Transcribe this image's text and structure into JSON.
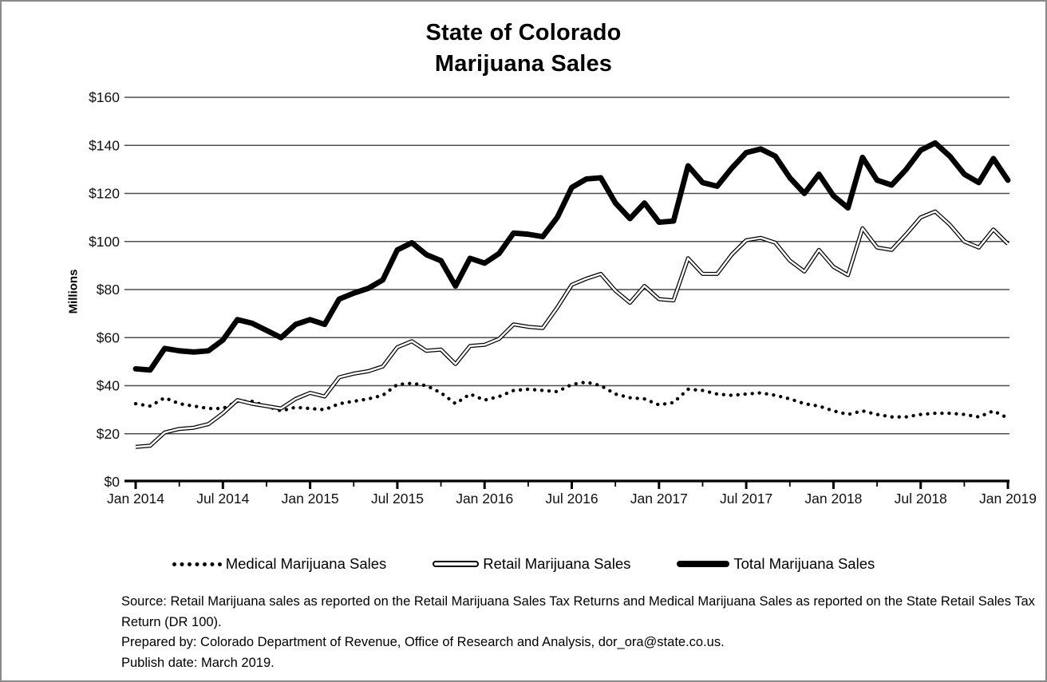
{
  "page": {
    "background_color": "#ffffff",
    "frame_border_color": "#8a8a8a"
  },
  "colors": {
    "series_line": "#000000",
    "gridline": "#4d4d4d",
    "axis": "#000000",
    "text": "#111111"
  },
  "chart_data": {
    "type": "line",
    "title": "State of Colorado Marijuana Sales",
    "title_lines": [
      "State of Colorado",
      "Marijuana Sales"
    ],
    "ylabel": "Millions",
    "xlabel": "",
    "ylim": [
      0,
      160
    ],
    "y_tick_interval": 20,
    "y_tick_labels": [
      "$160",
      "$140",
      "$120",
      "$100",
      "$80",
      "$60",
      "$40",
      "$20",
      "$0"
    ],
    "x_tick_labels": [
      "Jan 2014",
      "Jul 2014",
      "Jan 2015",
      "Jul 2015",
      "Jan 2016",
      "Jul 2016",
      "Jan 2017",
      "Jul 2017",
      "Jan 2018",
      "Jul 2018",
      "Jan 2019"
    ],
    "grid": true,
    "legend_position": "bottom",
    "x_months": [
      "2014-01",
      "2014-02",
      "2014-03",
      "2014-04",
      "2014-05",
      "2014-06",
      "2014-07",
      "2014-08",
      "2014-09",
      "2014-10",
      "2014-11",
      "2014-12",
      "2015-01",
      "2015-02",
      "2015-03",
      "2015-04",
      "2015-05",
      "2015-06",
      "2015-07",
      "2015-08",
      "2015-09",
      "2015-10",
      "2015-11",
      "2015-12",
      "2016-01",
      "2016-02",
      "2016-03",
      "2016-04",
      "2016-05",
      "2016-06",
      "2016-07",
      "2016-08",
      "2016-09",
      "2016-10",
      "2016-11",
      "2016-12",
      "2017-01",
      "2017-02",
      "2017-03",
      "2017-04",
      "2017-05",
      "2017-06",
      "2017-07",
      "2017-08",
      "2017-09",
      "2017-10",
      "2017-11",
      "2017-12",
      "2018-01",
      "2018-02",
      "2018-03",
      "2018-04",
      "2018-05",
      "2018-06",
      "2018-07",
      "2018-08",
      "2018-09",
      "2018-10",
      "2018-11",
      "2018-12",
      "2019-01"
    ],
    "units": "USD millions (estimated from chart)",
    "series": [
      {
        "name": "Medical Marijuana Sales",
        "style": "dotted",
        "values": [
          32.5,
          31.5,
          35,
          32.5,
          31.5,
          30.5,
          30.5,
          33.5,
          33.5,
          31.5,
          29.5,
          31,
          30.5,
          30,
          32.5,
          33.5,
          34.5,
          36,
          40.5,
          41,
          40,
          37,
          32.5,
          36.5,
          34,
          35.5,
          38,
          38.5,
          38,
          37.5,
          40.5,
          41.5,
          40,
          36.5,
          35,
          34.5,
          32,
          33,
          38.5,
          38,
          36.5,
          36,
          36.5,
          37,
          36,
          34.5,
          32.5,
          31.5,
          29.5,
          28,
          29.5,
          28,
          27,
          27,
          28,
          28.5,
          28.5,
          28,
          27,
          29.5,
          26.5
        ]
      },
      {
        "name": "Retail Marijuana Sales",
        "style": "double-line",
        "values": [
          14.5,
          15,
          20.5,
          22,
          22.5,
          24,
          28.5,
          34,
          32.5,
          31.5,
          30.5,
          34.5,
          37,
          35.5,
          43.5,
          45,
          46,
          48,
          56,
          58.5,
          54.5,
          55,
          49,
          56.5,
          57,
          59.5,
          65.5,
          64.5,
          64,
          72.5,
          82,
          84.5,
          86.5,
          79.5,
          74.5,
          81.5,
          76,
          75.5,
          93,
          86.5,
          86.5,
          94.5,
          100.5,
          101.5,
          99.5,
          92,
          87.5,
          96.5,
          89.5,
          86,
          105.5,
          97.5,
          96.5,
          103,
          110,
          112.5,
          107,
          100,
          97.5,
          105,
          99
        ]
      },
      {
        "name": "Total Marijuana Sales",
        "style": "thick-solid",
        "values": [
          47,
          46.5,
          55.5,
          54.5,
          54,
          54.5,
          59,
          67.5,
          66,
          63,
          60,
          65.5,
          67.5,
          65.5,
          76,
          78.5,
          80.5,
          84,
          96.5,
          99.5,
          94.5,
          92,
          81.5,
          93,
          91,
          95,
          103.5,
          103,
          102,
          110,
          122.5,
          126,
          126.5,
          116,
          109.5,
          116,
          108,
          108.5,
          131.5,
          124.5,
          123,
          130.5,
          137,
          138.5,
          135.5,
          126.5,
          120,
          128,
          119,
          114,
          135,
          125.5,
          123.5,
          130,
          138,
          141,
          135.5,
          128,
          124.5,
          134.5,
          125.5
        ]
      }
    ]
  },
  "footnotes": {
    "source": "Source: Retail Marijuana sales as reported on the Retail Marijuana Sales Tax Returns and Medical Marijuana Sales as reported on the State Retail Sales Tax Return (DR 100).",
    "prepared_by": "Prepared by: Colorado Department of Revenue, Office of Research and Analysis, dor_ora@state.co.us.",
    "publish_date": "Publish date: March 2019."
  }
}
